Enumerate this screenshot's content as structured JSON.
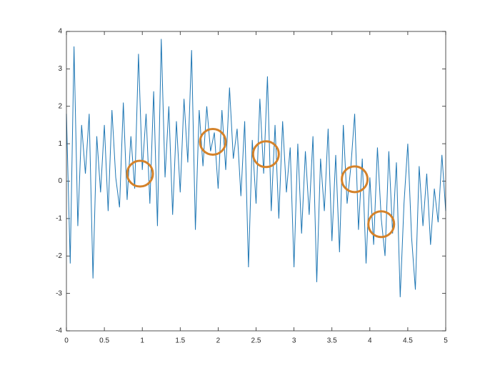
{
  "chart_data": {
    "type": "line",
    "x": [
      0,
      0.05,
      0.1,
      0.15,
      0.2,
      0.25,
      0.3,
      0.35,
      0.4,
      0.45,
      0.5,
      0.55,
      0.6,
      0.65,
      0.7,
      0.75,
      0.8,
      0.85,
      0.9,
      0.95,
      1,
      1.05,
      1.1,
      1.15,
      1.2,
      1.25,
      1.3,
      1.35,
      1.4,
      1.45,
      1.5,
      1.55,
      1.6,
      1.65,
      1.7,
      1.75,
      1.8,
      1.85,
      1.9,
      1.95,
      2,
      2.05,
      2.1,
      2.15,
      2.2,
      2.25,
      2.3,
      2.35,
      2.4,
      2.45,
      2.5,
      2.55,
      2.6,
      2.65,
      2.7,
      2.75,
      2.8,
      2.85,
      2.9,
      2.95,
      3,
      3.05,
      3.1,
      3.15,
      3.2,
      3.25,
      3.3,
      3.35,
      3.4,
      3.45,
      3.5,
      3.55,
      3.6,
      3.65,
      3.7,
      3.75,
      3.8,
      3.85,
      3.9,
      3.95,
      4,
      4.05,
      4.1,
      4.15,
      4.2,
      4.25,
      4.3,
      4.35,
      4.4,
      4.45,
      4.5,
      4.55,
      4.6,
      4.65,
      4.7,
      4.75,
      4.8,
      4.85,
      4.9,
      4.95,
      5
    ],
    "series": [
      {
        "color": "#1f77b4",
        "values": [
          1.8,
          -2.2,
          3.6,
          -1.2,
          1.5,
          0.2,
          1.8,
          -2.6,
          1.2,
          -0.3,
          1.5,
          -0.8,
          1.9,
          0.1,
          -0.7,
          2.1,
          -0.5,
          1.2,
          -0.2,
          3.4,
          0.3,
          1.8,
          -0.6,
          2.4,
          -1.2,
          3.8,
          0.1,
          2.0,
          -0.9,
          1.6,
          -0.3,
          2.2,
          0.5,
          3.5,
          -1.3,
          1.9,
          0.4,
          2.0,
          0.8,
          1.3,
          -0.2,
          1.9,
          0.3,
          2.5,
          0.6,
          1.4,
          -0.4,
          1.6,
          -2.3,
          1.1,
          -0.6,
          2.2,
          0.2,
          2.8,
          -0.8,
          1.5,
          -1.0,
          1.6,
          -0.3,
          0.9,
          -2.3,
          1.0,
          -1.4,
          0.8,
          -0.9,
          1.2,
          -2.7,
          0.6,
          -0.8,
          1.4,
          -1.6,
          0.7,
          -1.9,
          1.5,
          -0.6,
          0.4,
          1.8,
          -1.3,
          0.6,
          -2.2,
          0.1,
          -1.7,
          0.9,
          -1.0,
          -2.0,
          0.8,
          -1.4,
          0.5,
          -3.1,
          -0.6,
          1.0,
          -1.5,
          -2.9,
          0.4,
          -1.2,
          0.2,
          -1.7,
          -0.2,
          -1.1,
          0.7,
          -0.8
        ]
      },
      {
        "type": "scatter",
        "color": "#d4822a",
        "x": [
          0.97,
          1.93,
          2.63,
          3.8,
          4.15
        ],
        "values": [
          0.2,
          1.05,
          0.72,
          0.05,
          -1.15
        ]
      }
    ],
    "xlim": [
      0,
      5
    ],
    "ylim": [
      -4,
      4
    ],
    "xticks": [
      0,
      0.5,
      1,
      1.5,
      2,
      2.5,
      3,
      3.5,
      4,
      4.5,
      5
    ],
    "yticks": [
      -4,
      -3,
      -2,
      -1,
      0,
      1,
      2,
      3,
      4
    ]
  }
}
